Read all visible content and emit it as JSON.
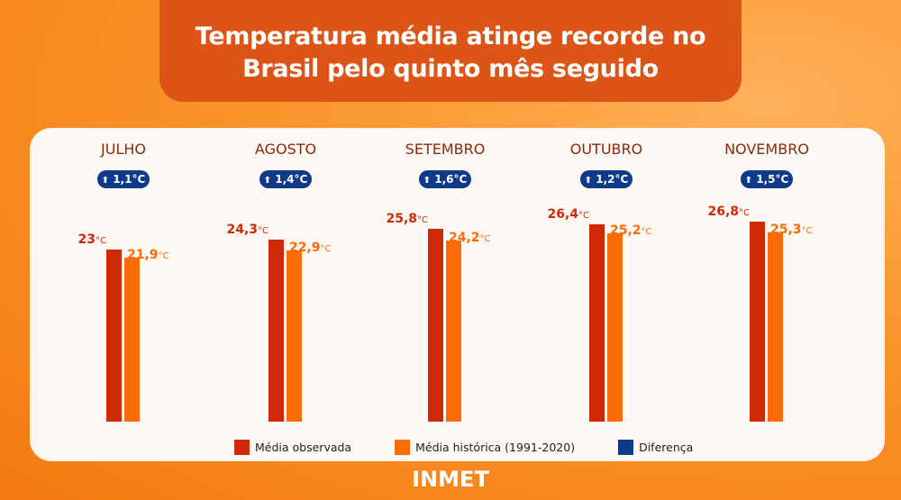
{
  "title": "Temperatura média atinge recorde no Brasil pelo quinto mês seguido",
  "footer": "INMET",
  "chart_data": {
    "type": "bar",
    "title": "Temperatura média atinge recorde no Brasil pelo quinto mês seguido",
    "categories": [
      "JULHO",
      "AGOSTO",
      "SETEMBRO",
      "OUTUBRO",
      "NOVEMBRO"
    ],
    "unit": "°C",
    "series": [
      {
        "name": "Média observada",
        "color": "#cf2a08",
        "values": [
          23,
          24.3,
          25.8,
          26.4,
          26.8
        ],
        "labels": [
          "23",
          "24,3",
          "25,8",
          "26,4",
          "26,8"
        ]
      },
      {
        "name": "Média histórica (1991-2020)",
        "color": "#fb6b07",
        "values": [
          21.9,
          22.9,
          24.2,
          25.2,
          25.3
        ],
        "labels": [
          "21,9",
          "22,9",
          "24,2",
          "25,2",
          "25,3"
        ]
      },
      {
        "name": "Diferença",
        "color": "#0f3a8a",
        "values": [
          1.1,
          1.4,
          1.6,
          1.2,
          1.5
        ],
        "labels": [
          "1,1°C",
          "1,4°C",
          "1,6°C",
          "1,2°C",
          "1,5°C"
        ]
      }
    ],
    "legend_position": "bottom",
    "grid": false,
    "ylim": [
      0,
      27
    ]
  }
}
